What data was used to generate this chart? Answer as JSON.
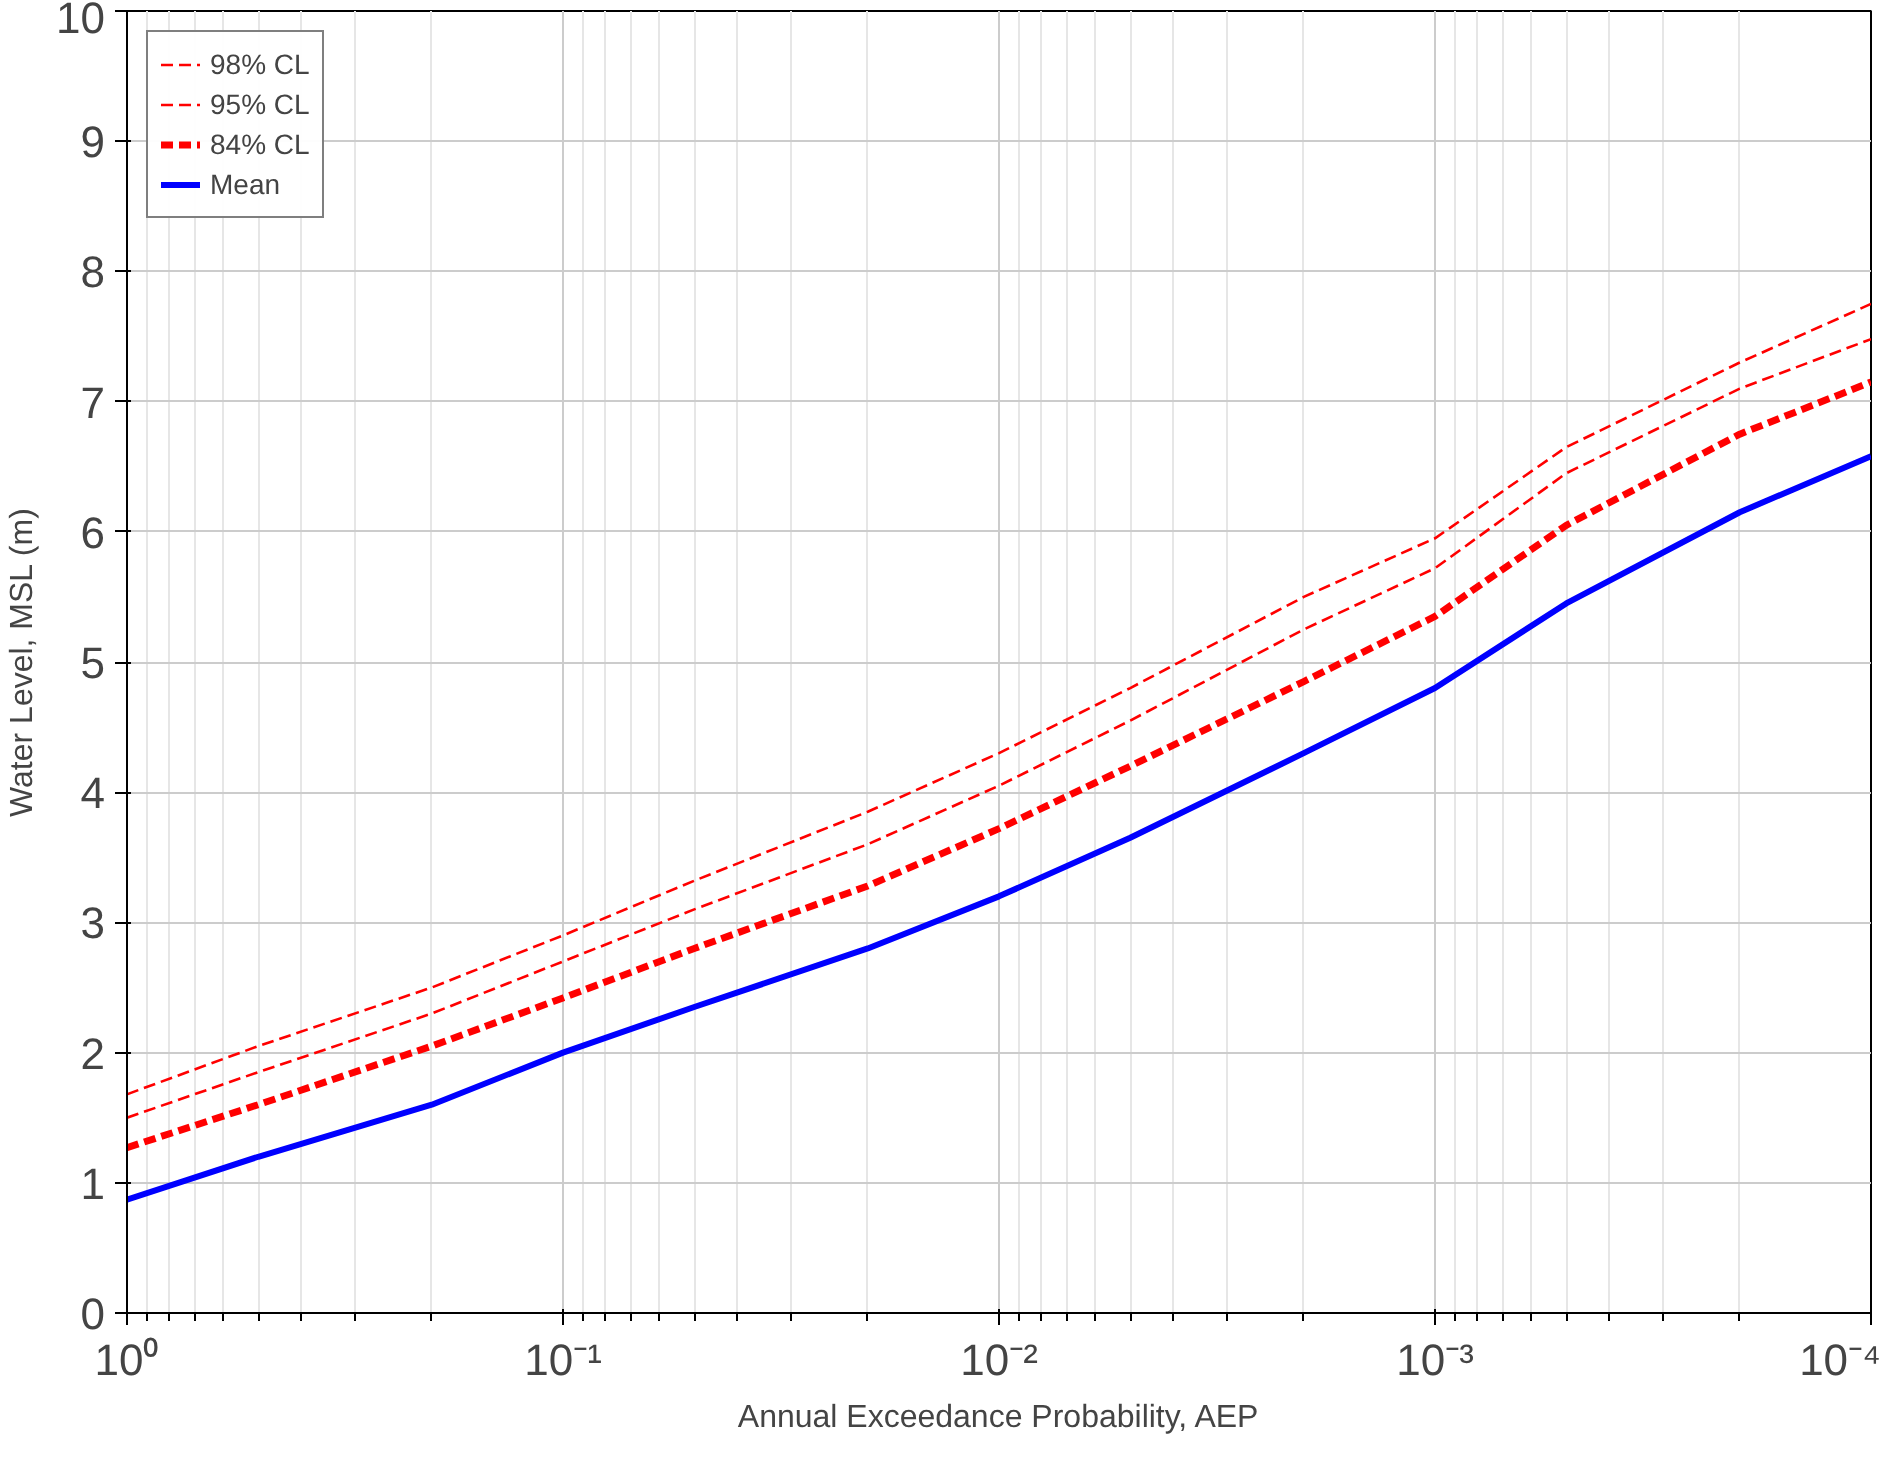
{
  "chart_data": {
    "type": "line",
    "xlabel": "Annual Exceedance Probability, AEP",
    "ylabel": "Water Level, MSL (m)",
    "x": [
      1,
      0.5,
      0.2,
      0.1,
      0.05,
      0.02,
      0.01,
      0.005,
      0.002,
      0.001,
      0.0005,
      0.0002,
      0.0001
    ],
    "series": [
      {
        "name": "98% CL",
        "color": "#ff0000",
        "line_style": "dashed",
        "values": [
          1.68,
          2.05,
          2.5,
          2.9,
          3.32,
          3.85,
          4.3,
          4.8,
          5.5,
          5.95,
          6.65,
          7.3,
          7.75
        ]
      },
      {
        "name": "95% CL",
        "color": "#ff0000",
        "line_style": "dashed",
        "values": [
          1.5,
          1.85,
          2.3,
          2.7,
          3.1,
          3.6,
          4.05,
          4.55,
          5.25,
          5.72,
          6.45,
          7.1,
          7.48
        ]
      },
      {
        "name": "84% CL",
        "color": "#ff0000",
        "line_style": "dashed",
        "values": [
          1.27,
          1.6,
          2.05,
          2.42,
          2.8,
          3.28,
          3.72,
          4.2,
          4.85,
          5.35,
          6.05,
          6.75,
          7.15
        ]
      },
      {
        "name": "Mean",
        "color": "#0000ff",
        "line_style": "solid",
        "values": [
          0.87,
          1.2,
          1.6,
          2.0,
          2.35,
          2.8,
          3.2,
          3.65,
          4.3,
          4.8,
          5.45,
          6.15,
          6.58
        ]
      }
    ],
    "log": "x",
    "xlim": [
      1,
      0.0001
    ],
    "xticks": [
      {
        "value": 1,
        "label": "10⁰"
      },
      {
        "value": 0.1,
        "label": "10⁻¹"
      },
      {
        "value": 0.01,
        "label": "10⁻²"
      },
      {
        "value": 0.001,
        "label": "10⁻³"
      },
      {
        "value": 0.0001,
        "label": "10⁻⁴"
      }
    ],
    "ylim": [
      0,
      10
    ],
    "yticks": [
      0,
      1,
      2,
      3,
      4,
      5,
      6,
      7,
      8,
      9,
      10
    ],
    "grid": true,
    "legend": "top left"
  }
}
